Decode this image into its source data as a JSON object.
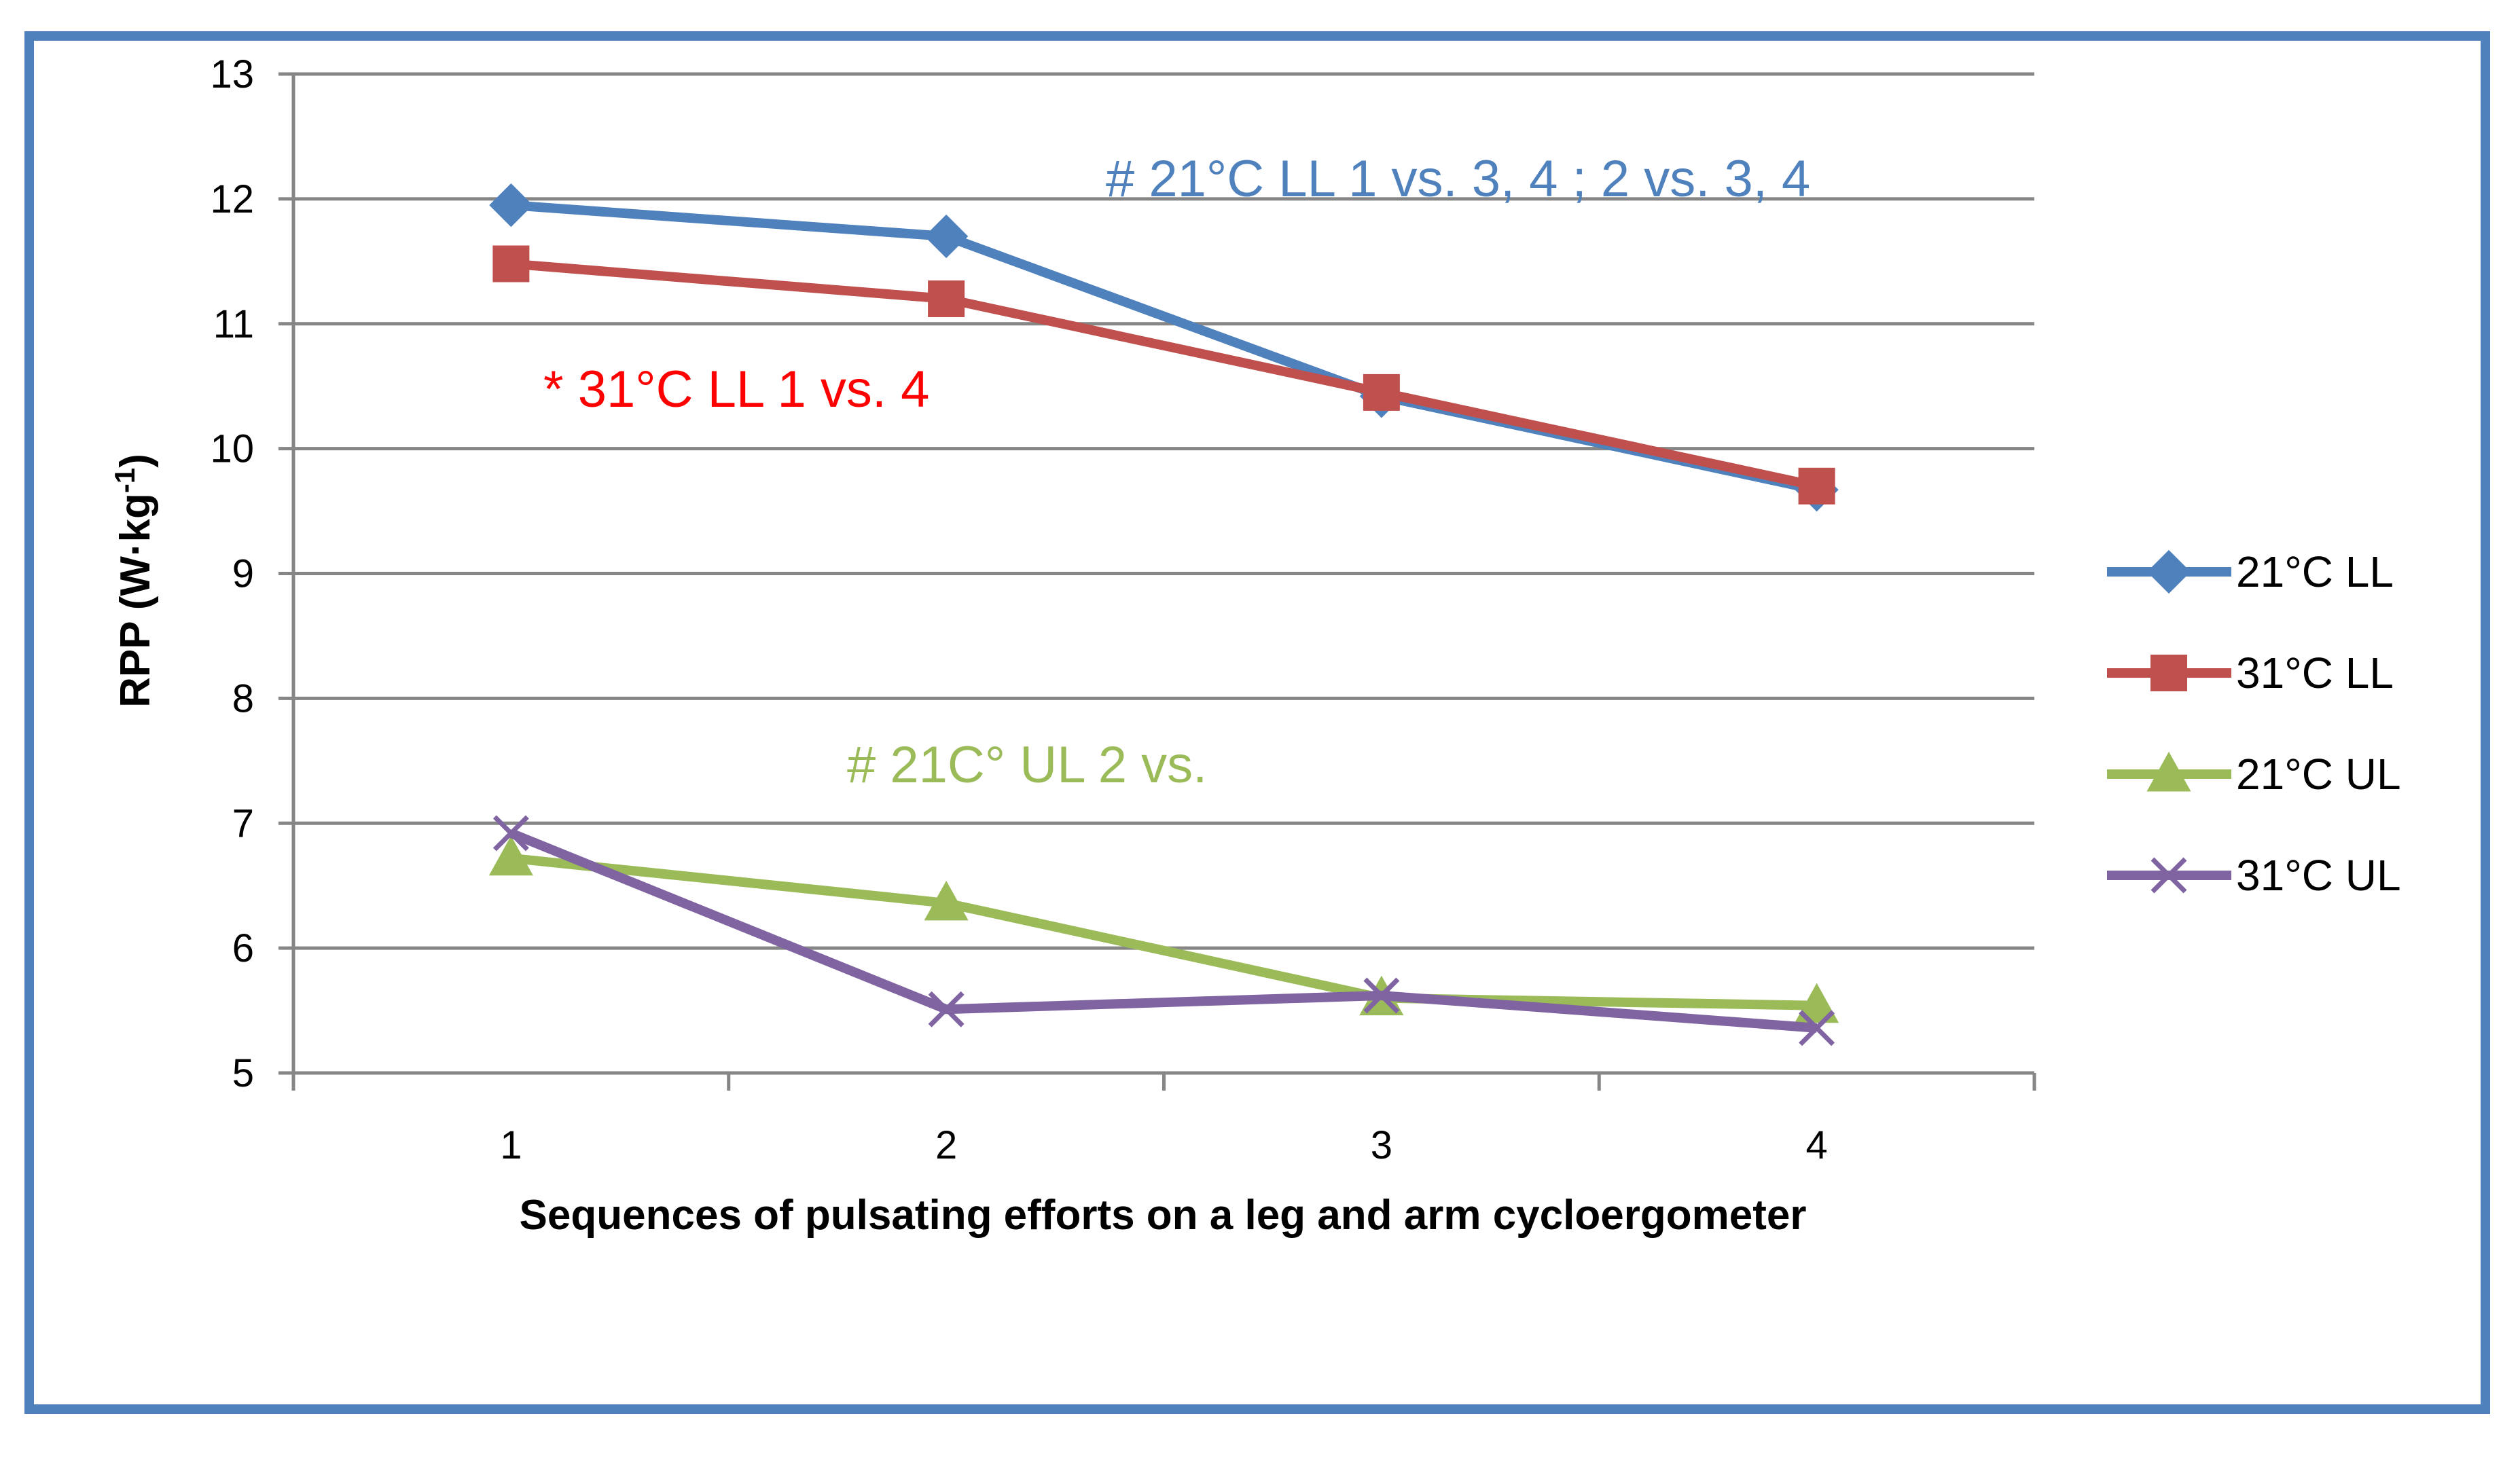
{
  "chart_data": {
    "type": "line",
    "title": "",
    "xlabel": "Sequences of pulsating efforts on a leg and arm cycloergometer",
    "ylabel_main": "RPP (W·kg",
    "ylabel_sup": "-1",
    "ylabel_close": ")",
    "x": [
      1,
      2,
      3,
      4
    ],
    "x_tick_labels": [
      "1",
      "2",
      "3",
      "4"
    ],
    "ylim": [
      5,
      13
    ],
    "y_ticks": [
      5,
      6,
      7,
      8,
      9,
      10,
      11,
      12,
      13
    ],
    "grid": true,
    "legend_position": "right",
    "series": [
      {
        "name": "21°C LL",
        "values": [
          11.95,
          11.7,
          10.42,
          9.67
        ],
        "color": "#4f81bd",
        "marker": "diamond"
      },
      {
        "name": "31°C LL",
        "values": [
          11.48,
          11.2,
          10.45,
          9.7
        ],
        "color": "#c0504d",
        "marker": "square"
      },
      {
        "name": "21°C UL",
        "values": [
          6.72,
          6.36,
          5.6,
          5.54
        ],
        "color": "#9bbb59",
        "marker": "triangle"
      },
      {
        "name": "31°C UL",
        "values": [
          6.92,
          5.51,
          5.62,
          5.36
        ],
        "color": "#8064a2",
        "marker": "x"
      }
    ],
    "annotations": [
      {
        "text": "# 21°C LL 1 vs. 3, 4 ; 2 vs. 3, 4",
        "color": "#4f81bd"
      },
      {
        "text": "* 31°C LL 1 vs. 4",
        "color": "#ff0000"
      },
      {
        "text": "#  21C° UL 2 vs.",
        "color": "#9bbb59"
      }
    ]
  }
}
